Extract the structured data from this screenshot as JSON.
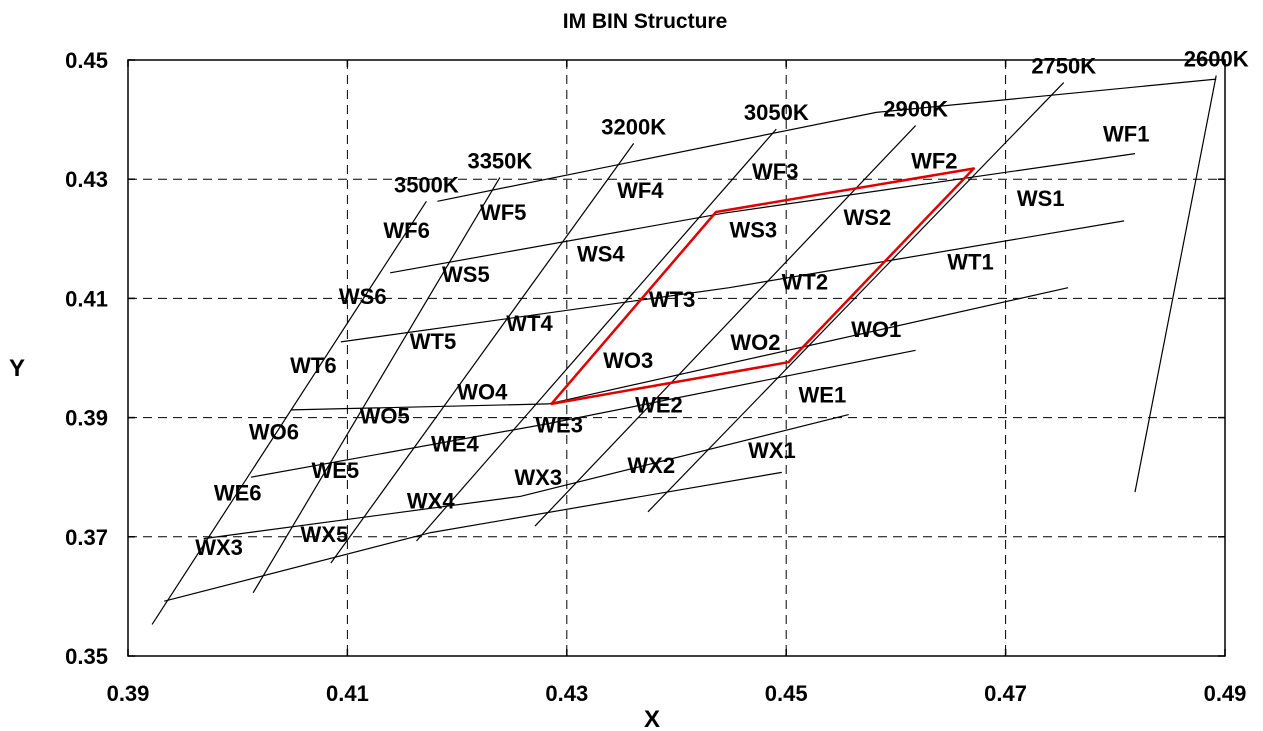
{
  "chart_data": {
    "type": "line",
    "title": "IM BIN Structure",
    "xlabel": "X",
    "ylabel": "Y",
    "xlim": [
      0.39,
      0.49
    ],
    "ylim": [
      0.35,
      0.45
    ],
    "xticks": [
      "0.39",
      "0.41",
      "0.43",
      "0.45",
      "0.47",
      "0.49"
    ],
    "yticks": [
      "0.35",
      "0.37",
      "0.39",
      "0.41",
      "0.43",
      "0.45"
    ],
    "grid": "dashed",
    "colors": {
      "grid_lines": "#000000",
      "highlight": "#e00000"
    },
    "cct_lines": [
      {
        "label": "2600K",
        "points": [
          [
            0.4818,
            0.3775
          ],
          [
            0.4892,
            0.4474
          ]
        ]
      },
      {
        "label": "2750K",
        "points": [
          [
            0.4374,
            0.3742
          ],
          [
            0.4753,
            0.4462
          ]
        ]
      },
      {
        "label": "2900K",
        "points": [
          [
            0.4271,
            0.3718
          ],
          [
            0.4618,
            0.439
          ]
        ]
      },
      {
        "label": "3050K",
        "points": [
          [
            0.4163,
            0.3693
          ],
          [
            0.4491,
            0.4384
          ]
        ]
      },
      {
        "label": "3200K",
        "points": [
          [
            0.4085,
            0.3656
          ],
          [
            0.4361,
            0.436
          ]
        ]
      },
      {
        "label": "3350K",
        "points": [
          [
            0.4014,
            0.3606
          ],
          [
            0.4239,
            0.4303
          ]
        ]
      },
      {
        "label": "3500K",
        "points": [
          [
            0.3922,
            0.3553
          ],
          [
            0.4172,
            0.4263
          ]
        ]
      }
    ],
    "duv_lines": [
      {
        "points": [
          [
            0.3933,
            0.3592
          ],
          [
            0.4176,
            0.3707
          ],
          [
            0.4496,
            0.3808
          ]
        ]
      },
      {
        "points": [
          [
            0.3969,
            0.3697
          ],
          [
            0.4258,
            0.3768
          ],
          [
            0.4557,
            0.3905
          ]
        ]
      },
      {
        "points": [
          [
            0.4012,
            0.38
          ],
          [
            0.4283,
            0.389
          ],
          [
            0.4618,
            0.4013
          ]
        ]
      },
      {
        "points": [
          [
            0.4049,
            0.3913
          ],
          [
            0.4283,
            0.3923
          ],
          [
            0.4757,
            0.4118
          ]
        ]
      },
      {
        "points": [
          [
            0.4094,
            0.4027
          ],
          [
            0.4448,
            0.4118
          ],
          [
            0.4808,
            0.423
          ]
        ]
      },
      {
        "points": [
          [
            0.4139,
            0.4143
          ],
          [
            0.4443,
            0.4243
          ],
          [
            0.4818,
            0.4343
          ]
        ]
      },
      {
        "points": [
          [
            0.4182,
            0.4263
          ],
          [
            0.4582,
            0.4412
          ],
          [
            0.4892,
            0.4468
          ]
        ]
      }
    ],
    "highlight_quad": [
      [
        0.4286,
        0.3923
      ],
      [
        0.4436,
        0.4245
      ],
      [
        0.4671,
        0.4318
      ],
      [
        0.4502,
        0.3993
      ]
    ],
    "bins": [
      {
        "label": "WF1",
        "x": 0.481,
        "y": 0.4373
      },
      {
        "label": "WF2",
        "x": 0.4635,
        "y": 0.4328
      },
      {
        "label": "WF3",
        "x": 0.449,
        "y": 0.431
      },
      {
        "label": "WF4",
        "x": 0.4367,
        "y": 0.4278
      },
      {
        "label": "WF5",
        "x": 0.4242,
        "y": 0.4241
      },
      {
        "label": "WF6",
        "x": 0.4154,
        "y": 0.4211
      },
      {
        "label": "WS1",
        "x": 0.4732,
        "y": 0.4265
      },
      {
        "label": "WS2",
        "x": 0.4574,
        "y": 0.4233
      },
      {
        "label": "WS3",
        "x": 0.447,
        "y": 0.4212
      },
      {
        "label": "WS4",
        "x": 0.4331,
        "y": 0.4172
      },
      {
        "label": "WS5",
        "x": 0.4208,
        "y": 0.4137
      },
      {
        "label": "WS6",
        "x": 0.4114,
        "y": 0.41
      },
      {
        "label": "WT1",
        "x": 0.4668,
        "y": 0.4158
      },
      {
        "label": "WT2",
        "x": 0.4517,
        "y": 0.4125
      },
      {
        "label": "WT3",
        "x": 0.4396,
        "y": 0.4095
      },
      {
        "label": "WT4",
        "x": 0.4266,
        "y": 0.4055
      },
      {
        "label": "WT5",
        "x": 0.4178,
        "y": 0.4025
      },
      {
        "label": "WT6",
        "x": 0.4069,
        "y": 0.3985
      },
      {
        "label": "WO1",
        "x": 0.4582,
        "y": 0.4045
      },
      {
        "label": "WO2",
        "x": 0.4472,
        "y": 0.4023
      },
      {
        "label": "WO3",
        "x": 0.4356,
        "y": 0.3993
      },
      {
        "label": "WO4",
        "x": 0.4223,
        "y": 0.394
      },
      {
        "label": "WO5",
        "x": 0.4134,
        "y": 0.39
      },
      {
        "label": "WO6",
        "x": 0.4033,
        "y": 0.3873
      },
      {
        "label": "WE1",
        "x": 0.4533,
        "y": 0.3935
      },
      {
        "label": "WE2",
        "x": 0.4384,
        "y": 0.3918
      },
      {
        "label": "WE3",
        "x": 0.4293,
        "y": 0.3885
      },
      {
        "label": "WE4",
        "x": 0.4198,
        "y": 0.3853
      },
      {
        "label": "WE5",
        "x": 0.4089,
        "y": 0.3808
      },
      {
        "label": "WE6",
        "x": 0.4,
        "y": 0.3771
      },
      {
        "label": "WX1",
        "x": 0.4487,
        "y": 0.3842
      },
      {
        "label": "WX2",
        "x": 0.4377,
        "y": 0.3817
      },
      {
        "label": "WX3",
        "x": 0.4274,
        "y": 0.3797
      },
      {
        "label": "WX4",
        "x": 0.4176,
        "y": 0.3757
      },
      {
        "label": "WX5",
        "x": 0.4079,
        "y": 0.3701
      },
      {
        "label": "WX3",
        "x": 0.3983,
        "y": 0.3679
      }
    ]
  }
}
